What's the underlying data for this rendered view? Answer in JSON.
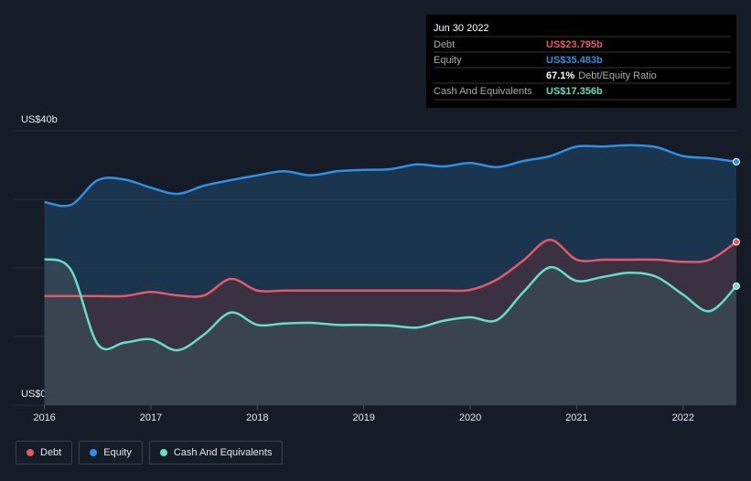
{
  "chart_data": {
    "type": "area-line",
    "x": [
      2016,
      2016.25,
      2016.5,
      2016.75,
      2017,
      2017.25,
      2017.5,
      2017.75,
      2018,
      2018.25,
      2018.5,
      2018.75,
      2019,
      2019.25,
      2019.5,
      2019.75,
      2020,
      2020.25,
      2020.5,
      2020.75,
      2021,
      2021.25,
      2021.5,
      2021.75,
      2022,
      2022.25,
      2022.5
    ],
    "xlim": [
      2015.72,
      2022.5
    ],
    "xticks": [
      2016,
      2017,
      2018,
      2019,
      2020,
      2021,
      2022
    ],
    "ylim": [
      0,
      40
    ],
    "yticks": [
      {
        "value": 0,
        "label": "US$0"
      },
      {
        "value": 40,
        "label": "US$40b"
      }
    ],
    "ygrid": [
      0,
      10,
      20,
      30,
      40
    ],
    "series": [
      {
        "name": "Equity",
        "color": "#2f8fe0",
        "fill": "#1d3f5e",
        "values": [
          29.6,
          29.2,
          32.8,
          32.9,
          31.7,
          30.8,
          32,
          32.8,
          33.5,
          34.1,
          33.5,
          34.1,
          34.3,
          34.4,
          35.1,
          34.8,
          35.3,
          34.7,
          35.6,
          36.3,
          37.7,
          37.7,
          37.9,
          37.6,
          36.3,
          36,
          35.483
        ]
      },
      {
        "name": "Debt",
        "color": "#e3596a",
        "fill": "#45303f",
        "values": [
          15.9,
          15.9,
          15.9,
          15.9,
          16.5,
          16,
          16,
          18.4,
          16.7,
          16.7,
          16.7,
          16.7,
          16.7,
          16.7,
          16.7,
          16.7,
          16.8,
          18.3,
          21.1,
          24.1,
          21.2,
          21.2,
          21.2,
          21.2,
          20.9,
          21.2,
          23.795
        ]
      },
      {
        "name": "Cash And Equivalents",
        "color": "#66dccb",
        "fill": "#3b4b55",
        "values": [
          21.3,
          19.7,
          8.9,
          9.1,
          9.6,
          8,
          10.3,
          13.5,
          11.7,
          11.9,
          12,
          11.7,
          11.7,
          11.6,
          11.3,
          12.3,
          12.8,
          12.4,
          16.5,
          20.1,
          18.1,
          18.7,
          19.3,
          18.7,
          16.1,
          13.7,
          17.356
        ]
      }
    ],
    "legend_order": [
      1,
      0,
      2
    ],
    "tooltip": {
      "date": "Jun 30 2022",
      "rows": [
        {
          "label": "Debt",
          "value": "US$23.795b",
          "color": "#e3596a"
        },
        {
          "label": "Equity",
          "value": "US$35.483b",
          "color": "#2f8fe0"
        },
        {
          "label": "",
          "value": "67.1%",
          "note": "Debt/Equity Ratio",
          "color": "#ffffff"
        },
        {
          "label": "Cash And Equivalents",
          "value": "US$17.356b",
          "color": "#66dccb"
        }
      ]
    }
  }
}
